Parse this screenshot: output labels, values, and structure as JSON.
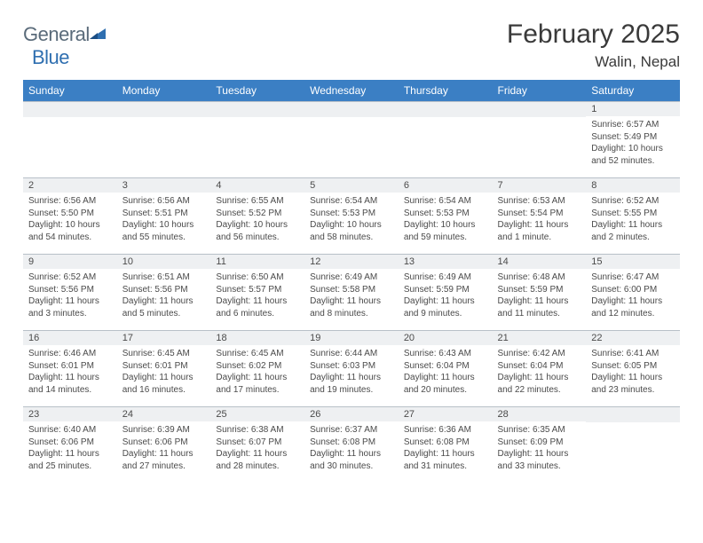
{
  "logo": {
    "gray": "General",
    "blue": "Blue"
  },
  "title": "February 2025",
  "location": "Walin, Nepal",
  "colors": {
    "header_bg": "#3b7fc4",
    "header_text": "#ffffff",
    "numrow_bg": "#eef0f2",
    "border": "#b8c0c8",
    "body_text": "#4a4a4a",
    "logo_gray": "#5a6b7a",
    "logo_blue": "#2f6fb0"
  },
  "day_headers": [
    "Sunday",
    "Monday",
    "Tuesday",
    "Wednesday",
    "Thursday",
    "Friday",
    "Saturday"
  ],
  "weeks": [
    [
      {
        "num": "",
        "lines": []
      },
      {
        "num": "",
        "lines": []
      },
      {
        "num": "",
        "lines": []
      },
      {
        "num": "",
        "lines": []
      },
      {
        "num": "",
        "lines": []
      },
      {
        "num": "",
        "lines": []
      },
      {
        "num": "1",
        "lines": [
          "Sunrise: 6:57 AM",
          "Sunset: 5:49 PM",
          "Daylight: 10 hours and 52 minutes."
        ]
      }
    ],
    [
      {
        "num": "2",
        "lines": [
          "Sunrise: 6:56 AM",
          "Sunset: 5:50 PM",
          "Daylight: 10 hours and 54 minutes."
        ]
      },
      {
        "num": "3",
        "lines": [
          "Sunrise: 6:56 AM",
          "Sunset: 5:51 PM",
          "Daylight: 10 hours and 55 minutes."
        ]
      },
      {
        "num": "4",
        "lines": [
          "Sunrise: 6:55 AM",
          "Sunset: 5:52 PM",
          "Daylight: 10 hours and 56 minutes."
        ]
      },
      {
        "num": "5",
        "lines": [
          "Sunrise: 6:54 AM",
          "Sunset: 5:53 PM",
          "Daylight: 10 hours and 58 minutes."
        ]
      },
      {
        "num": "6",
        "lines": [
          "Sunrise: 6:54 AM",
          "Sunset: 5:53 PM",
          "Daylight: 10 hours and 59 minutes."
        ]
      },
      {
        "num": "7",
        "lines": [
          "Sunrise: 6:53 AM",
          "Sunset: 5:54 PM",
          "Daylight: 11 hours and 1 minute."
        ]
      },
      {
        "num": "8",
        "lines": [
          "Sunrise: 6:52 AM",
          "Sunset: 5:55 PM",
          "Daylight: 11 hours and 2 minutes."
        ]
      }
    ],
    [
      {
        "num": "9",
        "lines": [
          "Sunrise: 6:52 AM",
          "Sunset: 5:56 PM",
          "Daylight: 11 hours and 3 minutes."
        ]
      },
      {
        "num": "10",
        "lines": [
          "Sunrise: 6:51 AM",
          "Sunset: 5:56 PM",
          "Daylight: 11 hours and 5 minutes."
        ]
      },
      {
        "num": "11",
        "lines": [
          "Sunrise: 6:50 AM",
          "Sunset: 5:57 PM",
          "Daylight: 11 hours and 6 minutes."
        ]
      },
      {
        "num": "12",
        "lines": [
          "Sunrise: 6:49 AM",
          "Sunset: 5:58 PM",
          "Daylight: 11 hours and 8 minutes."
        ]
      },
      {
        "num": "13",
        "lines": [
          "Sunrise: 6:49 AM",
          "Sunset: 5:59 PM",
          "Daylight: 11 hours and 9 minutes."
        ]
      },
      {
        "num": "14",
        "lines": [
          "Sunrise: 6:48 AM",
          "Sunset: 5:59 PM",
          "Daylight: 11 hours and 11 minutes."
        ]
      },
      {
        "num": "15",
        "lines": [
          "Sunrise: 6:47 AM",
          "Sunset: 6:00 PM",
          "Daylight: 11 hours and 12 minutes."
        ]
      }
    ],
    [
      {
        "num": "16",
        "lines": [
          "Sunrise: 6:46 AM",
          "Sunset: 6:01 PM",
          "Daylight: 11 hours and 14 minutes."
        ]
      },
      {
        "num": "17",
        "lines": [
          "Sunrise: 6:45 AM",
          "Sunset: 6:01 PM",
          "Daylight: 11 hours and 16 minutes."
        ]
      },
      {
        "num": "18",
        "lines": [
          "Sunrise: 6:45 AM",
          "Sunset: 6:02 PM",
          "Daylight: 11 hours and 17 minutes."
        ]
      },
      {
        "num": "19",
        "lines": [
          "Sunrise: 6:44 AM",
          "Sunset: 6:03 PM",
          "Daylight: 11 hours and 19 minutes."
        ]
      },
      {
        "num": "20",
        "lines": [
          "Sunrise: 6:43 AM",
          "Sunset: 6:04 PM",
          "Daylight: 11 hours and 20 minutes."
        ]
      },
      {
        "num": "21",
        "lines": [
          "Sunrise: 6:42 AM",
          "Sunset: 6:04 PM",
          "Daylight: 11 hours and 22 minutes."
        ]
      },
      {
        "num": "22",
        "lines": [
          "Sunrise: 6:41 AM",
          "Sunset: 6:05 PM",
          "Daylight: 11 hours and 23 minutes."
        ]
      }
    ],
    [
      {
        "num": "23",
        "lines": [
          "Sunrise: 6:40 AM",
          "Sunset: 6:06 PM",
          "Daylight: 11 hours and 25 minutes."
        ]
      },
      {
        "num": "24",
        "lines": [
          "Sunrise: 6:39 AM",
          "Sunset: 6:06 PM",
          "Daylight: 11 hours and 27 minutes."
        ]
      },
      {
        "num": "25",
        "lines": [
          "Sunrise: 6:38 AM",
          "Sunset: 6:07 PM",
          "Daylight: 11 hours and 28 minutes."
        ]
      },
      {
        "num": "26",
        "lines": [
          "Sunrise: 6:37 AM",
          "Sunset: 6:08 PM",
          "Daylight: 11 hours and 30 minutes."
        ]
      },
      {
        "num": "27",
        "lines": [
          "Sunrise: 6:36 AM",
          "Sunset: 6:08 PM",
          "Daylight: 11 hours and 31 minutes."
        ]
      },
      {
        "num": "28",
        "lines": [
          "Sunrise: 6:35 AM",
          "Sunset: 6:09 PM",
          "Daylight: 11 hours and 33 minutes."
        ]
      },
      {
        "num": "",
        "lines": []
      }
    ]
  ]
}
